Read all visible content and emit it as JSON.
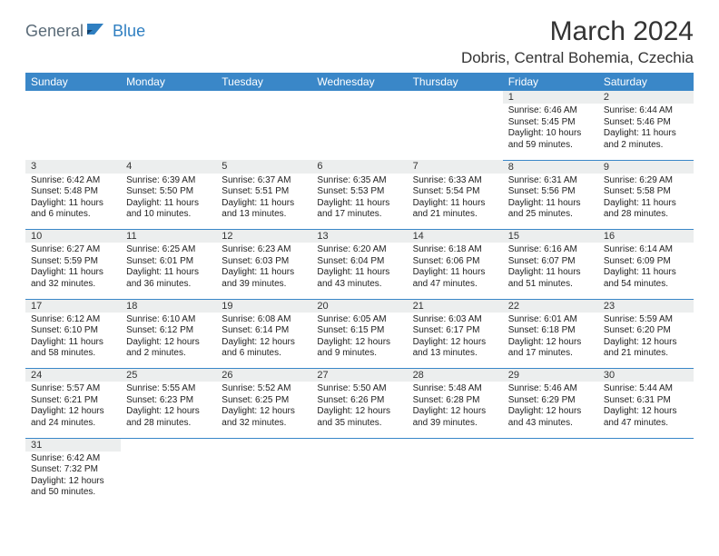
{
  "logo": {
    "part1": "General",
    "part2": "Blue"
  },
  "title": "March 2024",
  "location": "Dobris, Central Bohemia, Czechia",
  "headerColor": "#3a87c8",
  "dayHeaders": [
    "Sunday",
    "Monday",
    "Tuesday",
    "Wednesday",
    "Thursday",
    "Friday",
    "Saturday"
  ],
  "weeks": [
    [
      null,
      null,
      null,
      null,
      null,
      {
        "n": "1",
        "sr": "Sunrise: 6:46 AM",
        "ss": "Sunset: 5:45 PM",
        "dl": "Daylight: 10 hours and 59 minutes."
      },
      {
        "n": "2",
        "sr": "Sunrise: 6:44 AM",
        "ss": "Sunset: 5:46 PM",
        "dl": "Daylight: 11 hours and 2 minutes."
      }
    ],
    [
      {
        "n": "3",
        "sr": "Sunrise: 6:42 AM",
        "ss": "Sunset: 5:48 PM",
        "dl": "Daylight: 11 hours and 6 minutes."
      },
      {
        "n": "4",
        "sr": "Sunrise: 6:39 AM",
        "ss": "Sunset: 5:50 PM",
        "dl": "Daylight: 11 hours and 10 minutes."
      },
      {
        "n": "5",
        "sr": "Sunrise: 6:37 AM",
        "ss": "Sunset: 5:51 PM",
        "dl": "Daylight: 11 hours and 13 minutes."
      },
      {
        "n": "6",
        "sr": "Sunrise: 6:35 AM",
        "ss": "Sunset: 5:53 PM",
        "dl": "Daylight: 11 hours and 17 minutes."
      },
      {
        "n": "7",
        "sr": "Sunrise: 6:33 AM",
        "ss": "Sunset: 5:54 PM",
        "dl": "Daylight: 11 hours and 21 minutes."
      },
      {
        "n": "8",
        "sr": "Sunrise: 6:31 AM",
        "ss": "Sunset: 5:56 PM",
        "dl": "Daylight: 11 hours and 25 minutes."
      },
      {
        "n": "9",
        "sr": "Sunrise: 6:29 AM",
        "ss": "Sunset: 5:58 PM",
        "dl": "Daylight: 11 hours and 28 minutes."
      }
    ],
    [
      {
        "n": "10",
        "sr": "Sunrise: 6:27 AM",
        "ss": "Sunset: 5:59 PM",
        "dl": "Daylight: 11 hours and 32 minutes."
      },
      {
        "n": "11",
        "sr": "Sunrise: 6:25 AM",
        "ss": "Sunset: 6:01 PM",
        "dl": "Daylight: 11 hours and 36 minutes."
      },
      {
        "n": "12",
        "sr": "Sunrise: 6:23 AM",
        "ss": "Sunset: 6:03 PM",
        "dl": "Daylight: 11 hours and 39 minutes."
      },
      {
        "n": "13",
        "sr": "Sunrise: 6:20 AM",
        "ss": "Sunset: 6:04 PM",
        "dl": "Daylight: 11 hours and 43 minutes."
      },
      {
        "n": "14",
        "sr": "Sunrise: 6:18 AM",
        "ss": "Sunset: 6:06 PM",
        "dl": "Daylight: 11 hours and 47 minutes."
      },
      {
        "n": "15",
        "sr": "Sunrise: 6:16 AM",
        "ss": "Sunset: 6:07 PM",
        "dl": "Daylight: 11 hours and 51 minutes."
      },
      {
        "n": "16",
        "sr": "Sunrise: 6:14 AM",
        "ss": "Sunset: 6:09 PM",
        "dl": "Daylight: 11 hours and 54 minutes."
      }
    ],
    [
      {
        "n": "17",
        "sr": "Sunrise: 6:12 AM",
        "ss": "Sunset: 6:10 PM",
        "dl": "Daylight: 11 hours and 58 minutes."
      },
      {
        "n": "18",
        "sr": "Sunrise: 6:10 AM",
        "ss": "Sunset: 6:12 PM",
        "dl": "Daylight: 12 hours and 2 minutes."
      },
      {
        "n": "19",
        "sr": "Sunrise: 6:08 AM",
        "ss": "Sunset: 6:14 PM",
        "dl": "Daylight: 12 hours and 6 minutes."
      },
      {
        "n": "20",
        "sr": "Sunrise: 6:05 AM",
        "ss": "Sunset: 6:15 PM",
        "dl": "Daylight: 12 hours and 9 minutes."
      },
      {
        "n": "21",
        "sr": "Sunrise: 6:03 AM",
        "ss": "Sunset: 6:17 PM",
        "dl": "Daylight: 12 hours and 13 minutes."
      },
      {
        "n": "22",
        "sr": "Sunrise: 6:01 AM",
        "ss": "Sunset: 6:18 PM",
        "dl": "Daylight: 12 hours and 17 minutes."
      },
      {
        "n": "23",
        "sr": "Sunrise: 5:59 AM",
        "ss": "Sunset: 6:20 PM",
        "dl": "Daylight: 12 hours and 21 minutes."
      }
    ],
    [
      {
        "n": "24",
        "sr": "Sunrise: 5:57 AM",
        "ss": "Sunset: 6:21 PM",
        "dl": "Daylight: 12 hours and 24 minutes."
      },
      {
        "n": "25",
        "sr": "Sunrise: 5:55 AM",
        "ss": "Sunset: 6:23 PM",
        "dl": "Daylight: 12 hours and 28 minutes."
      },
      {
        "n": "26",
        "sr": "Sunrise: 5:52 AM",
        "ss": "Sunset: 6:25 PM",
        "dl": "Daylight: 12 hours and 32 minutes."
      },
      {
        "n": "27",
        "sr": "Sunrise: 5:50 AM",
        "ss": "Sunset: 6:26 PM",
        "dl": "Daylight: 12 hours and 35 minutes."
      },
      {
        "n": "28",
        "sr": "Sunrise: 5:48 AM",
        "ss": "Sunset: 6:28 PM",
        "dl": "Daylight: 12 hours and 39 minutes."
      },
      {
        "n": "29",
        "sr": "Sunrise: 5:46 AM",
        "ss": "Sunset: 6:29 PM",
        "dl": "Daylight: 12 hours and 43 minutes."
      },
      {
        "n": "30",
        "sr": "Sunrise: 5:44 AM",
        "ss": "Sunset: 6:31 PM",
        "dl": "Daylight: 12 hours and 47 minutes."
      }
    ],
    [
      {
        "n": "31",
        "sr": "Sunrise: 6:42 AM",
        "ss": "Sunset: 7:32 PM",
        "dl": "Daylight: 12 hours and 50 minutes."
      },
      null,
      null,
      null,
      null,
      null,
      null
    ]
  ]
}
